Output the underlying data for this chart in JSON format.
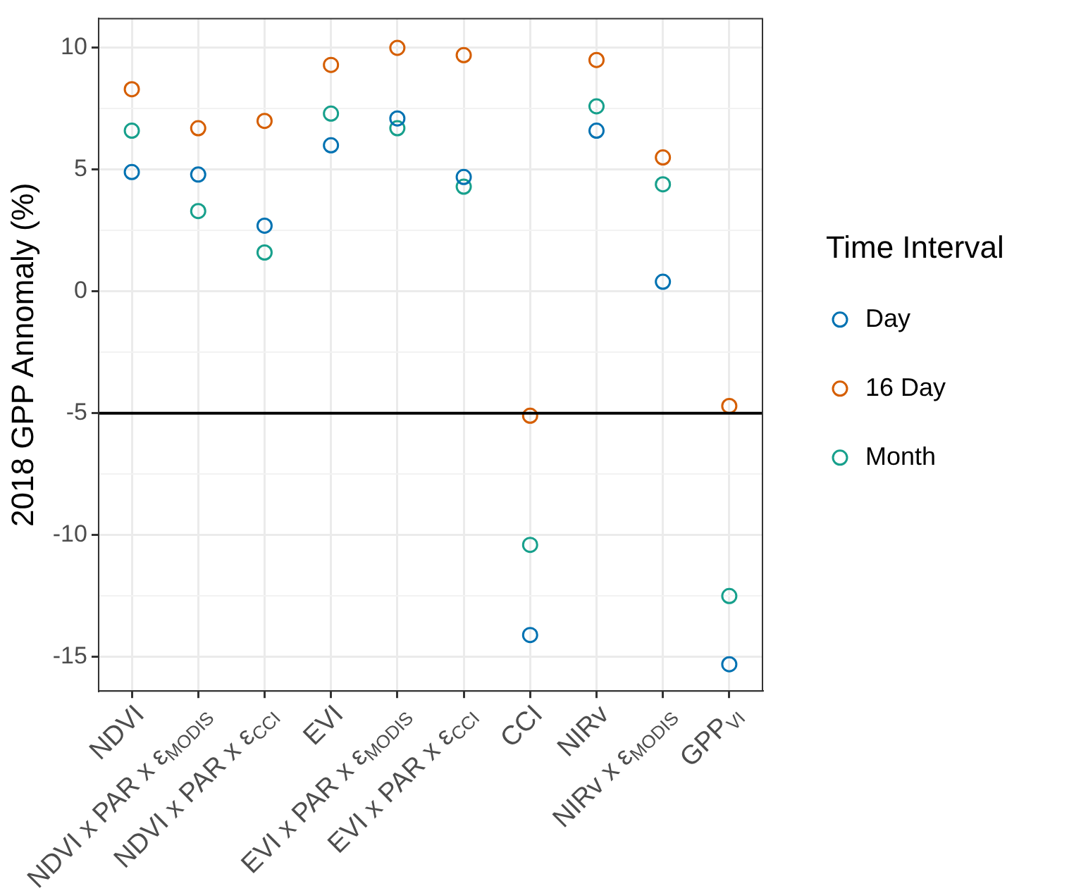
{
  "chart_data": {
    "type": "scatter",
    "ylabel": "2018 GPP Annomaly (%)",
    "legend_title": "Time Interval",
    "categories": [
      "NDVI",
      "NDVI x PAR x ε$_{MODIS}$",
      "NDVI x PAR x ε$_{CCI}$",
      "EVI",
      "EVI x PAR x ε$_{MODIS}$",
      "EVI x PAR x ε$_{CCI}$",
      "CCI",
      "NIRv",
      "NIRv x ε$_{MODIS}$",
      "GPP$_{VI}$"
    ],
    "series": [
      {
        "name": "Day",
        "color": "#0072b2",
        "values": [
          4.9,
          4.8,
          2.7,
          6.0,
          7.1,
          4.7,
          -14.1,
          6.6,
          0.4,
          -15.3
        ]
      },
      {
        "name": "16 Day",
        "color": "#d55e00",
        "values": [
          8.3,
          6.7,
          7.0,
          9.3,
          10.0,
          9.7,
          -5.1,
          9.5,
          5.5,
          -4.7
        ]
      },
      {
        "name": "Month",
        "color": "#17a08c",
        "values": [
          6.6,
          3.3,
          1.6,
          7.3,
          6.7,
          4.3,
          -10.4,
          7.6,
          4.4,
          -12.5
        ]
      }
    ],
    "ylim": [
      -16.4,
      11.2
    ],
    "yticks": [
      -15,
      {
        "value": -12.5,
        "label": null
      },
      -10,
      {
        "value": -7.5,
        "label": null
      },
      -5,
      {
        "value": -2.5,
        "label": null
      },
      0,
      {
        "value": 2.5,
        "label": null
      },
      5,
      {
        "value": 7.5,
        "label": null
      },
      10
    ],
    "ref_lines": [
      {
        "axis": "y",
        "value": -5,
        "label": null,
        "color": "#000000"
      }
    ],
    "grid": true,
    "legend": "right",
    "marker": "circle"
  }
}
